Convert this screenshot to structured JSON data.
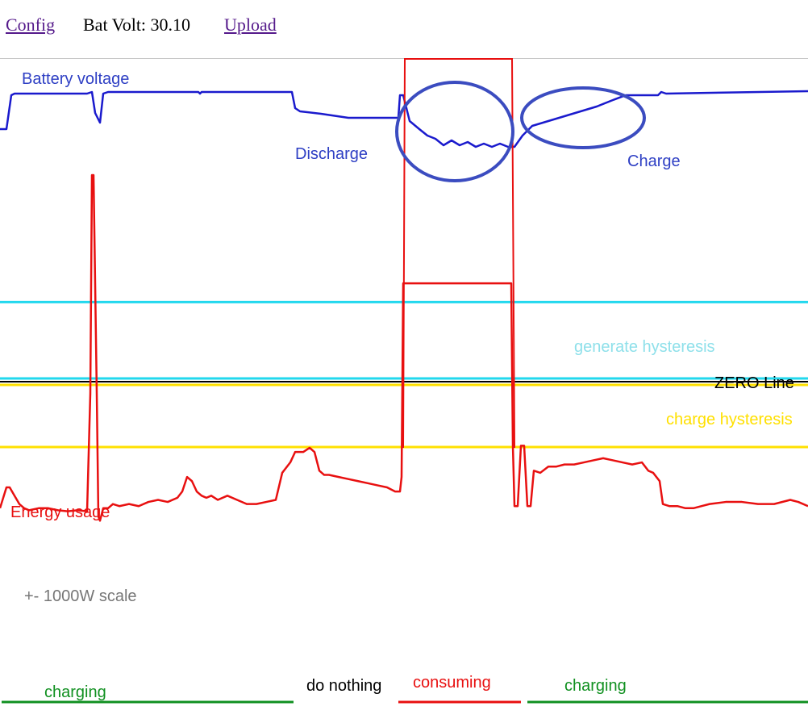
{
  "nav": {
    "config_label": "Config",
    "volt_prefix": "Bat Volt:",
    "volt_value": "30.10",
    "upload_label": "Upload"
  },
  "chart_data": {
    "type": "line",
    "title": "",
    "scale_note": "+- 1000W scale",
    "series": [
      {
        "name": "Battery voltage",
        "color": "#1a1acd",
        "comment": "values in screen-relative units (chart prints no voltage ticks)",
        "x": [
          0,
          8,
          14,
          18,
          108,
          114,
          118,
          124,
          128,
          134,
          150,
          246,
          248,
          250,
          362,
          366,
          372,
          398,
          432,
          438,
          494,
          496,
          500,
          508,
          520,
          530,
          540,
          550,
          560,
          570,
          580,
          590,
          600,
          610,
          620,
          630,
          638,
          648,
          660,
          680,
          700,
          720,
          740,
          760,
          776,
          816,
          820,
          826,
          1002
        ],
        "y": [
          160,
          160,
          118,
          116,
          116,
          114,
          140,
          152,
          116,
          114,
          114,
          114,
          116,
          114,
          114,
          134,
          138,
          141,
          146,
          146,
          146,
          118,
          118,
          150,
          160,
          168,
          172,
          180,
          174,
          180,
          176,
          182,
          178,
          182,
          178,
          182,
          182,
          168,
          156,
          150,
          144,
          138,
          132,
          124,
          118,
          118,
          114,
          116,
          113
        ]
      },
      {
        "name": "Energy usage",
        "color": "#e81010",
        "comment": "watts, scale +-1000W, positive = up",
        "x": [
          0,
          8,
          12,
          18,
          24,
          30,
          36,
          48,
          60,
          72,
          84,
          96,
          108,
          112,
          114,
          116,
          120,
          122,
          124,
          128,
          134,
          140,
          148,
          160,
          172,
          184,
          196,
          208,
          220,
          226,
          232,
          238,
          244,
          250,
          256,
          262,
          270,
          282,
          294,
          306,
          318,
          330,
          342,
          350,
          354,
          360,
          366,
          372,
          376,
          380,
          384,
          390,
          396,
          402,
          408,
          420,
          432,
          444,
          456,
          468,
          480,
          490,
          496,
          498,
          500,
          502,
          634,
          636,
          638,
          642,
          646,
          650,
          654,
          658,
          662,
          670,
          680,
          690,
          700,
          712,
          724,
          736,
          748,
          760,
          772,
          784,
          796,
          804,
          810,
          818,
          822,
          830,
          840,
          850,
          860,
          870,
          880,
          900,
          920,
          940,
          960,
          980,
          990,
          1002
        ],
        "y": [
          -600,
          -500,
          -500,
          -540,
          -580,
          -600,
          -610,
          -600,
          -600,
          -610,
          -615,
          -610,
          -615,
          -50,
          1000,
          1000,
          -50,
          -640,
          -660,
          -600,
          -600,
          -580,
          -590,
          -580,
          -590,
          -570,
          -560,
          -570,
          -550,
          -520,
          -450,
          -470,
          -520,
          -540,
          -550,
          -540,
          -560,
          -540,
          -560,
          -580,
          -580,
          -570,
          -560,
          -430,
          -410,
          -380,
          -330,
          -330,
          -330,
          -320,
          -310,
          -330,
          -420,
          -440,
          -440,
          -450,
          -460,
          -470,
          -480,
          -490,
          -500,
          -520,
          -520,
          -450,
          480,
          480,
          480,
          -300,
          -590,
          -590,
          -300,
          -300,
          -590,
          -590,
          -420,
          -430,
          -400,
          -400,
          -390,
          -390,
          -380,
          -370,
          -360,
          -370,
          -380,
          -390,
          -380,
          -420,
          -430,
          -470,
          -580,
          -590,
          -590,
          -600,
          -600,
          -590,
          -580,
          -570,
          -570,
          -580,
          -580,
          -560,
          -570,
          -590
        ]
      }
    ],
    "reference_lines": [
      {
        "name": "generate hysteresis",
        "color": "#22d8ee",
        "y_upper": 80,
        "y_lower": -40
      },
      {
        "name": "ZERO Line",
        "color": "#000000",
        "y": -50
      },
      {
        "name": "charge hysteresis",
        "color": "#ffe000",
        "y_upper": -55,
        "y_lower": -580
      }
    ],
    "annotations": [
      {
        "text": "Battery voltage",
        "color": "#2e3fc4"
      },
      {
        "text": "Discharge",
        "color": "#2e3fc4"
      },
      {
        "text": "Charge",
        "color": "#2e3fc4"
      },
      {
        "text": "generate hysteresis",
        "color": "#8ee0ea"
      },
      {
        "text": "ZERO Line",
        "color": "#000000"
      },
      {
        "text": "charge hysteresis",
        "color": "#ffe000"
      },
      {
        "text": "Energy usage",
        "color": "#e81010"
      },
      {
        "text": "+- 1000W scale",
        "color": "#777777"
      }
    ],
    "states": [
      {
        "label": "charging",
        "color": "#109020"
      },
      {
        "label": "do nothing",
        "color": "#000000"
      },
      {
        "label": "consuming",
        "color": "#e81010"
      },
      {
        "label": "charging",
        "color": "#109020"
      }
    ]
  }
}
